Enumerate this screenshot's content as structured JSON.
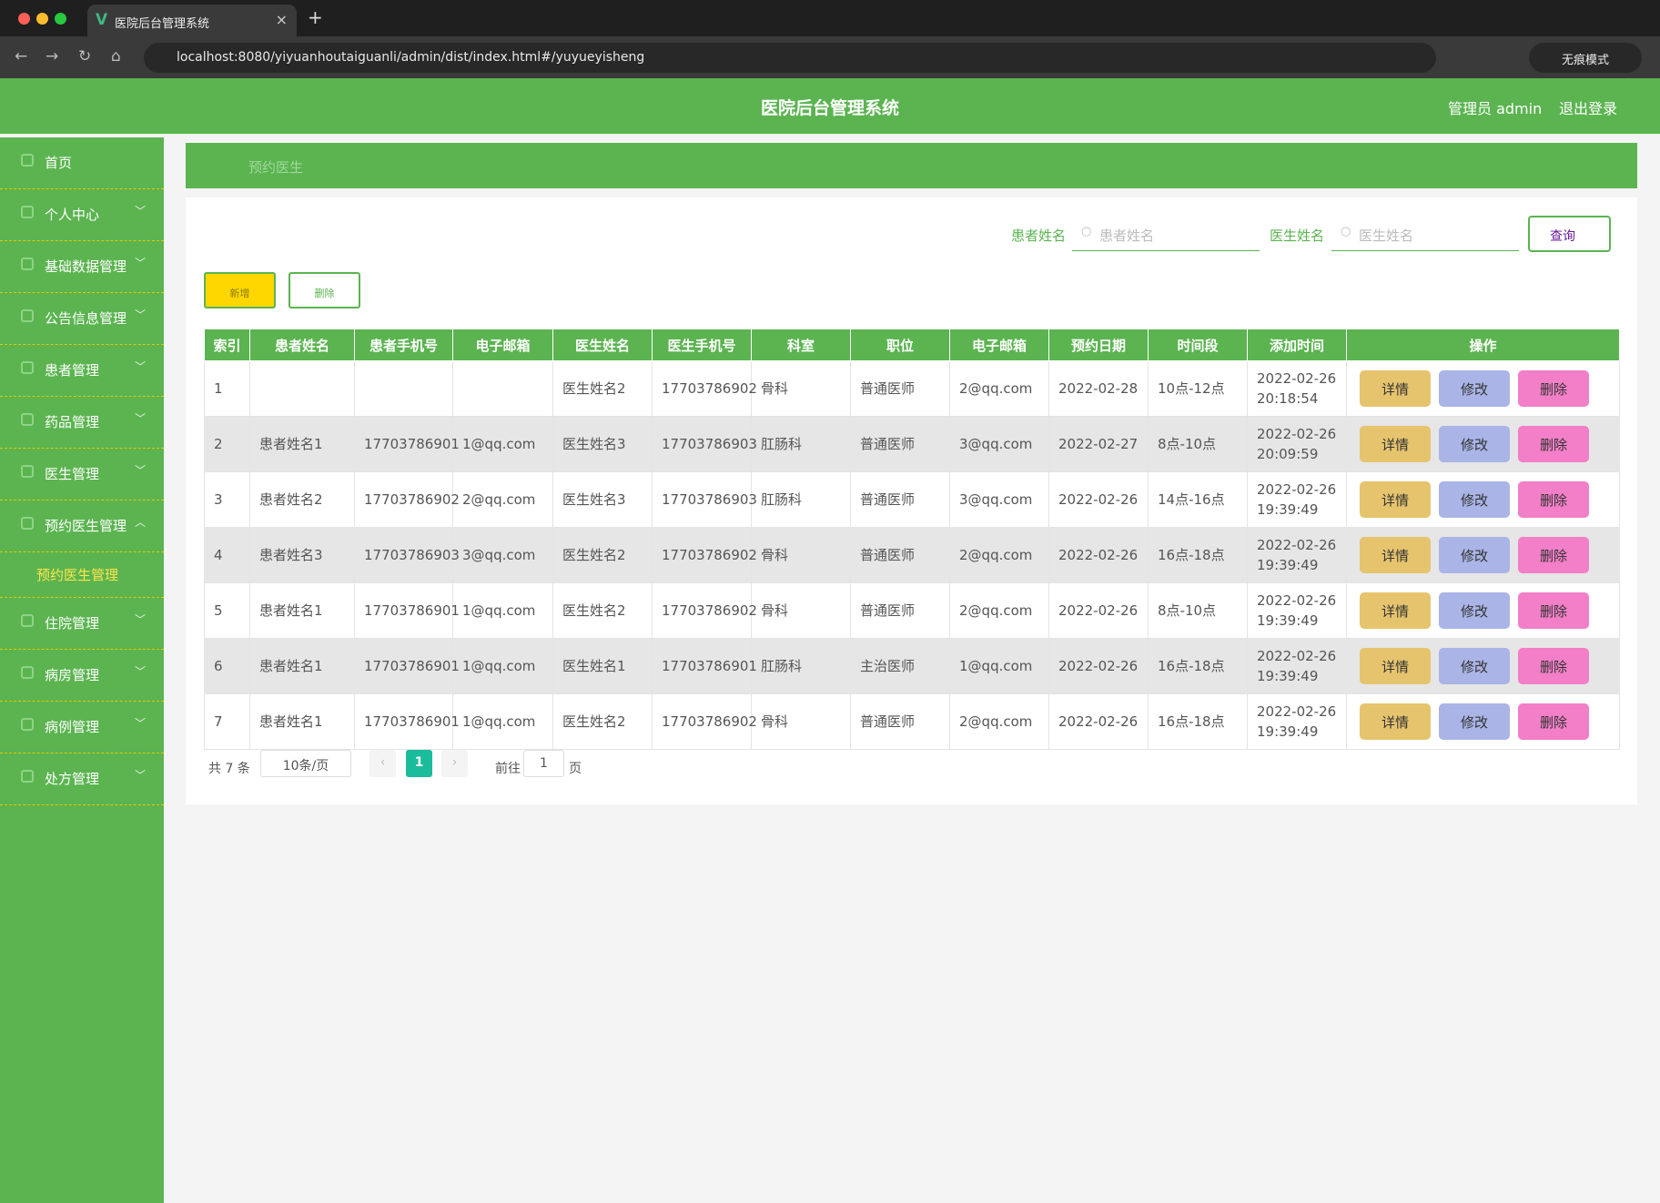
{
  "browser": {
    "tab_title": "医院后台管理系统",
    "url": "localhost:8080/yiyuanhoutaiguanli/admin/dist/index.html#/yuyueyisheng",
    "incognito": "无痕模式"
  },
  "header": {
    "title": "医院后台管理系统",
    "user": "管理员 admin",
    "logout": "退出登录"
  },
  "sidebar": {
    "items": [
      {
        "label": "首页"
      },
      {
        "label": "个人中心"
      },
      {
        "label": "基础数据管理"
      },
      {
        "label": "公告信息管理"
      },
      {
        "label": "患者管理"
      },
      {
        "label": "药品管理"
      },
      {
        "label": "医生管理"
      },
      {
        "label": "预约医生管理",
        "children": [
          "预约医生管理"
        ]
      },
      {
        "label": "住院管理"
      },
      {
        "label": "病房管理"
      },
      {
        "label": "病例管理"
      },
      {
        "label": "处方管理"
      }
    ]
  },
  "breadcrumb": "预约医生",
  "search": {
    "fields": [
      {
        "label": "患者姓名",
        "placeholder": "患者姓名"
      },
      {
        "label": "医生姓名",
        "placeholder": "医生姓名"
      }
    ],
    "button": "查询"
  },
  "toolbar": {
    "add": "新增",
    "delete": "删除"
  },
  "table": {
    "columns": [
      "索引",
      "患者姓名",
      "患者手机号",
      "电子邮箱",
      "医生姓名",
      "医生手机号",
      "科室",
      "职位",
      "电子邮箱",
      "预约日期",
      "时间段",
      "添加时间",
      "操作"
    ],
    "rows": [
      [
        "1",
        null,
        null,
        null,
        "医生姓名2",
        "17703786902",
        "骨科",
        "普通医师",
        "2@qq.com",
        "2022-02-28",
        "10点-12点",
        "2022-02-26 20:18:54"
      ],
      [
        "2",
        "患者姓名1",
        "17703786901",
        "1@qq.com",
        "医生姓名3",
        "17703786903",
        "肛肠科",
        "普通医师",
        "3@qq.com",
        "2022-02-27",
        "8点-10点",
        "2022-02-26 20:09:59"
      ],
      [
        "3",
        "患者姓名2",
        "17703786902",
        "2@qq.com",
        "医生姓名3",
        "17703786903",
        "肛肠科",
        "普通医师",
        "3@qq.com",
        "2022-02-26",
        "14点-16点",
        "2022-02-26 19:39:49"
      ],
      [
        "4",
        "患者姓名3",
        "17703786903",
        "3@qq.com",
        "医生姓名2",
        "17703786902",
        "骨科",
        "普通医师",
        "2@qq.com",
        "2022-02-26",
        "16点-18点",
        "2022-02-26 19:39:49"
      ],
      [
        "5",
        "患者姓名1",
        "17703786901",
        "1@qq.com",
        "医生姓名2",
        "17703786902",
        "骨科",
        "普通医师",
        "2@qq.com",
        "2022-02-26",
        "8点-10点",
        "2022-02-26 19:39:49"
      ],
      [
        "6",
        "患者姓名1",
        "17703786901",
        "1@qq.com",
        "医生姓名1",
        "17703786901",
        "肛肠科",
        "主治医师",
        "1@qq.com",
        "2022-02-26",
        "16点-18点",
        "2022-02-26 19:39:49"
      ],
      [
        "7",
        "患者姓名1",
        "17703786901",
        "1@qq.com",
        "医生姓名2",
        "17703786902",
        "骨科",
        "普通医师",
        "2@qq.com",
        "2022-02-26",
        "16点-18点",
        "2022-02-26 19:39:49"
      ]
    ],
    "actions": [
      "详情",
      "修改",
      "删除"
    ]
  },
  "pagination": {
    "total": "共 7 条",
    "page_size": "10条/页",
    "current": 1,
    "goto_prefix": "前往",
    "goto_value": 1,
    "goto_suffix": "页"
  }
}
